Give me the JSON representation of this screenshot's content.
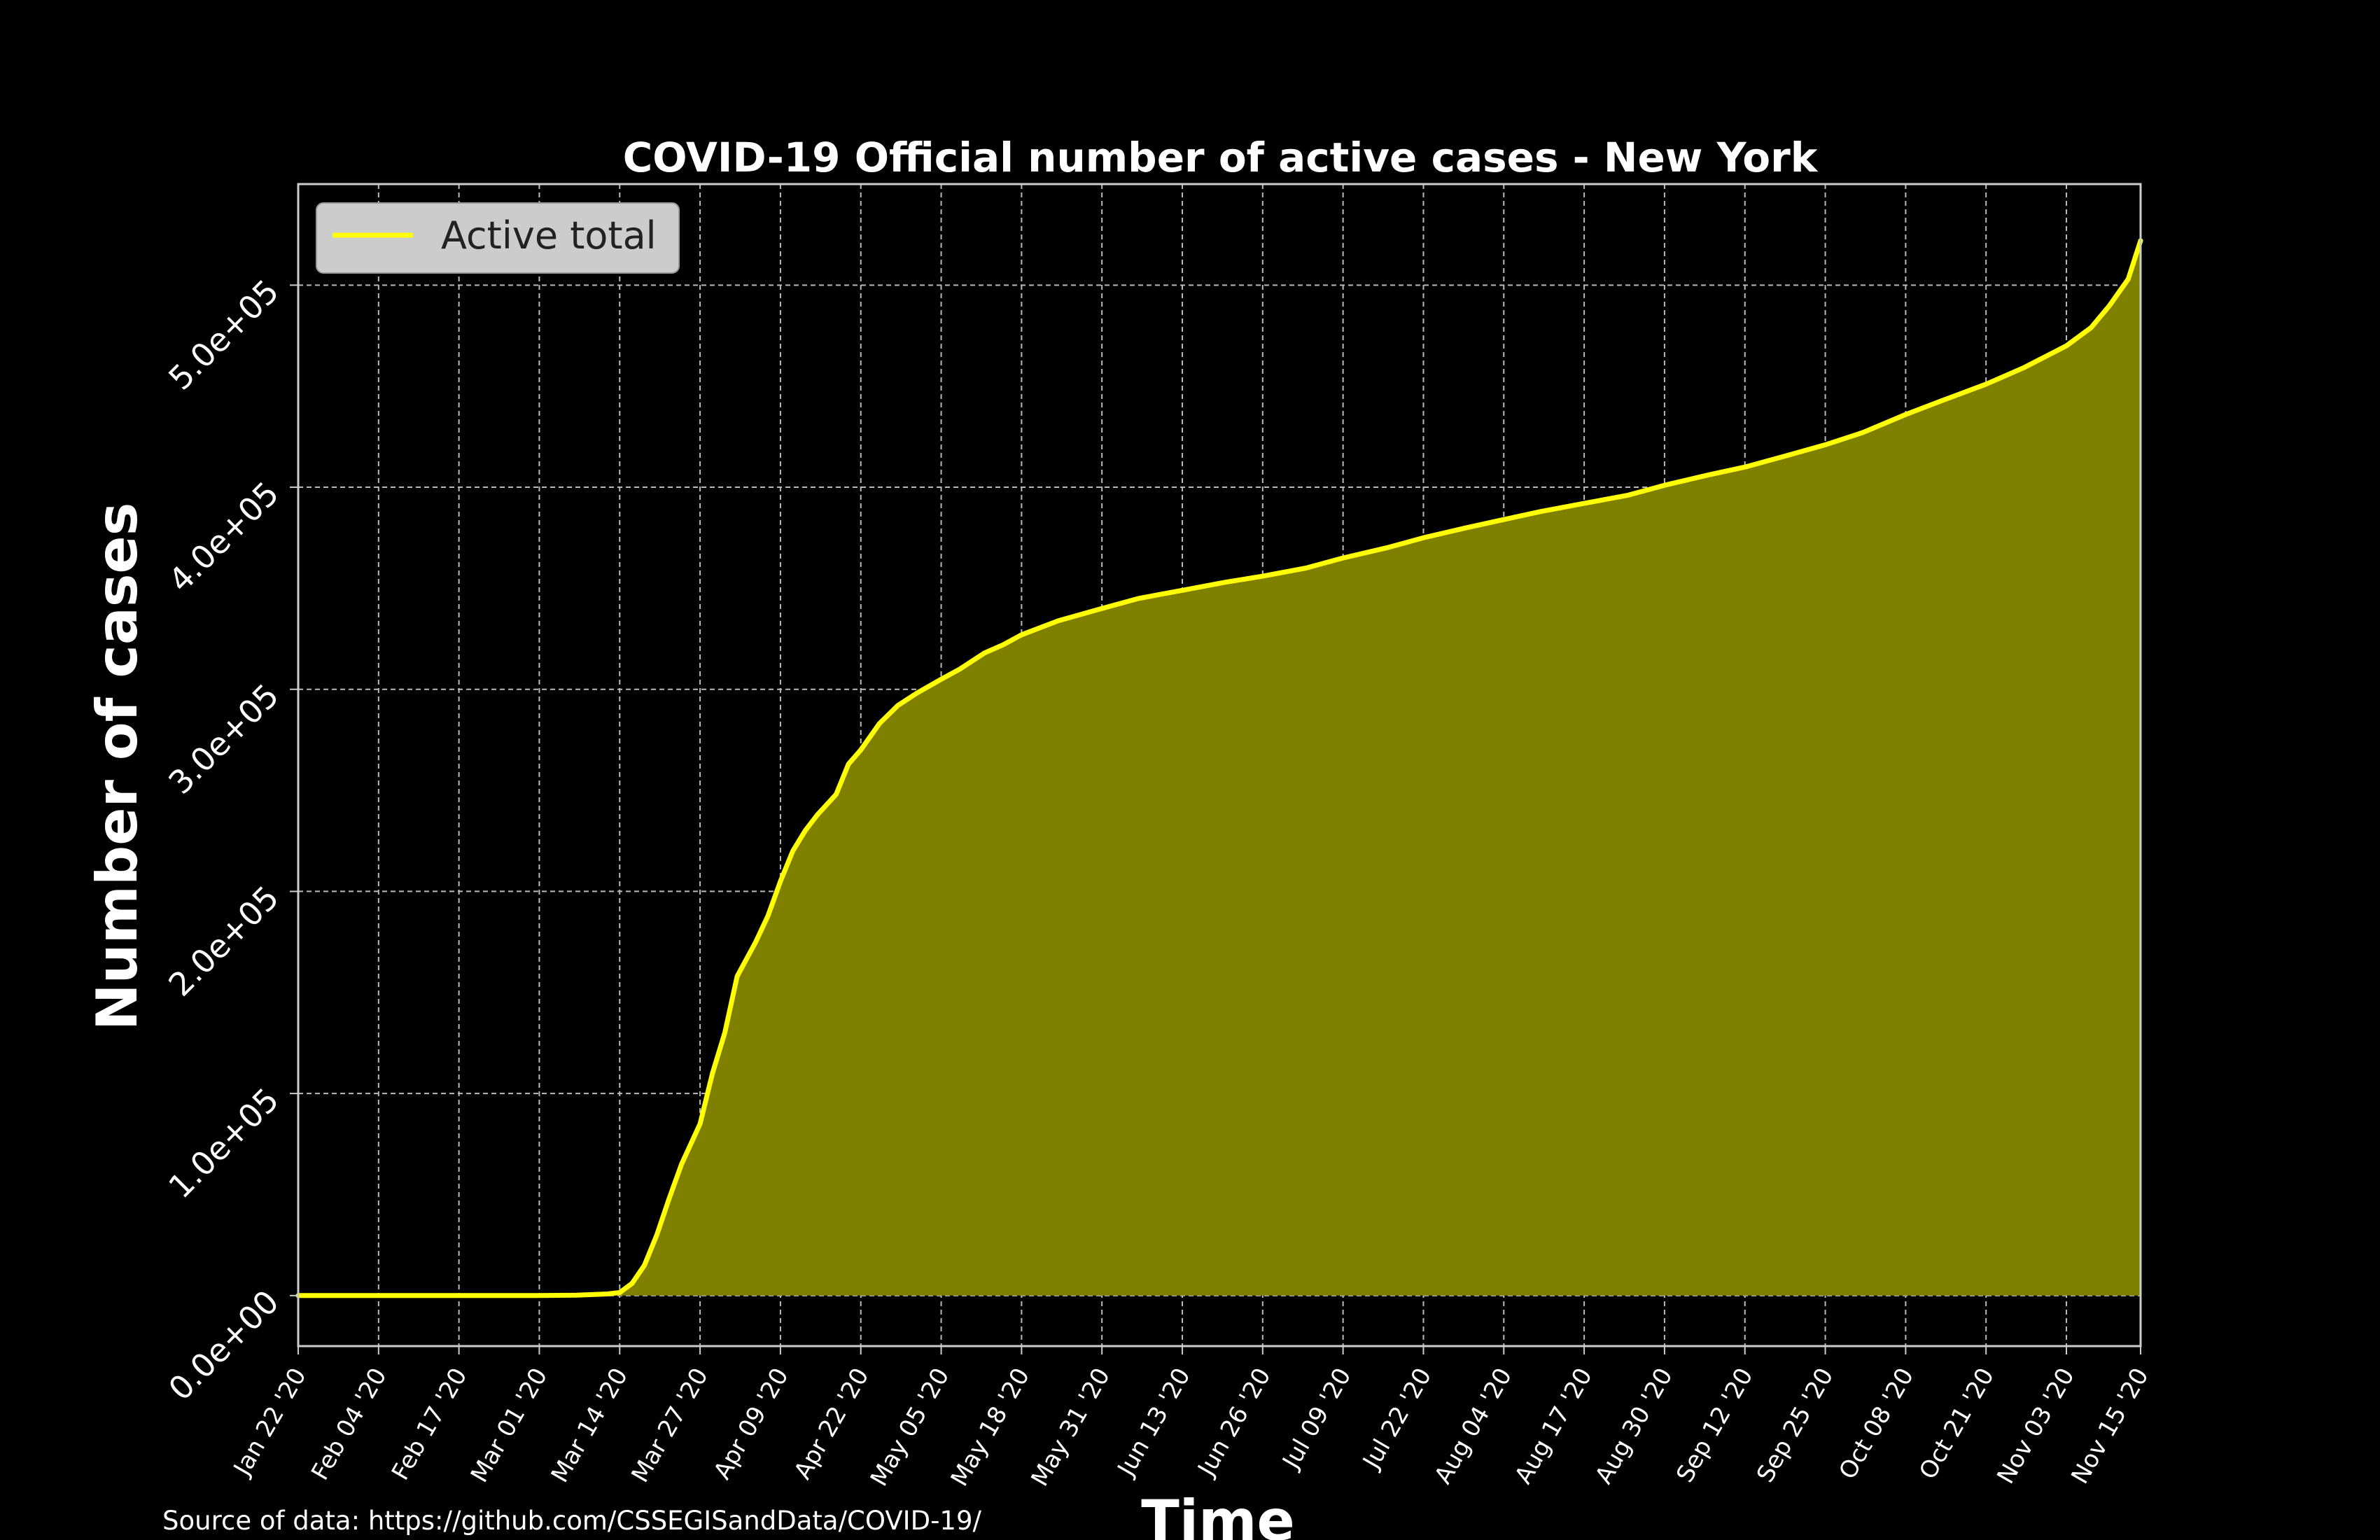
{
  "chart_data": {
    "type": "area",
    "title": "COVID-19 Official number of active cases - New York",
    "xlabel": "Time",
    "ylabel": "Number of cases",
    "source_note": "Source of data: https://github.com/CSSEGISandData/COVID-19/",
    "legend": {
      "placement": "top-left",
      "entries": [
        "Active total"
      ]
    },
    "grid": true,
    "ylim": [
      -25000,
      550000
    ],
    "yticks": [
      0,
      100000,
      200000,
      300000,
      400000,
      500000
    ],
    "ytick_labels": [
      "0.0e+00",
      "1.0e+05",
      "2.0e+05",
      "3.0e+05",
      "4.0e+05",
      "5.0e+05"
    ],
    "xlim": [
      "2020-01-22",
      "2020-11-15"
    ],
    "xticks": [
      "2020-01-22",
      "2020-02-04",
      "2020-02-17",
      "2020-03-01",
      "2020-03-14",
      "2020-03-27",
      "2020-04-09",
      "2020-04-22",
      "2020-05-05",
      "2020-05-18",
      "2020-05-31",
      "2020-06-13",
      "2020-06-26",
      "2020-07-09",
      "2020-07-22",
      "2020-08-04",
      "2020-08-17",
      "2020-08-30",
      "2020-09-12",
      "2020-09-25",
      "2020-10-08",
      "2020-10-21",
      "2020-11-03",
      "2020-11-15"
    ],
    "xtick_labels": [
      "Jan 22 '20",
      "Feb 04 '20",
      "Feb 17 '20",
      "Mar 01 '20",
      "Mar 14 '20",
      "Mar 27 '20",
      "Apr 09 '20",
      "Apr 22 '20",
      "May 05 '20",
      "May 18 '20",
      "May 31 '20",
      "Jun 13 '20",
      "Jun 26 '20",
      "Jul 09 '20",
      "Jul 22 '20",
      "Aug 04 '20",
      "Aug 17 '20",
      "Aug 30 '20",
      "Sep 12 '20",
      "Sep 25 '20",
      "Oct 08 '20",
      "Oct 21 '20",
      "Nov 03 '20",
      "Nov 15 '20"
    ],
    "series": [
      {
        "name": "Active total",
        "color": "#ffff00",
        "fill_color": "#808000",
        "x": [
          "2020-01-22",
          "2020-02-04",
          "2020-02-17",
          "2020-03-01",
          "2020-03-07",
          "2020-03-12",
          "2020-03-14",
          "2020-03-16",
          "2020-03-18",
          "2020-03-20",
          "2020-03-22",
          "2020-03-24",
          "2020-03-27",
          "2020-03-29",
          "2020-03-31",
          "2020-04-02",
          "2020-04-05",
          "2020-04-07",
          "2020-04-09",
          "2020-04-11",
          "2020-04-13",
          "2020-04-15",
          "2020-04-18",
          "2020-04-20",
          "2020-04-22",
          "2020-04-25",
          "2020-04-28",
          "2020-05-01",
          "2020-05-05",
          "2020-05-08",
          "2020-05-12",
          "2020-05-15",
          "2020-05-18",
          "2020-05-24",
          "2020-05-31",
          "2020-06-06",
          "2020-06-13",
          "2020-06-20",
          "2020-06-26",
          "2020-07-03",
          "2020-07-09",
          "2020-07-16",
          "2020-07-22",
          "2020-07-29",
          "2020-08-04",
          "2020-08-10",
          "2020-08-17",
          "2020-08-24",
          "2020-08-30",
          "2020-09-06",
          "2020-09-12",
          "2020-09-18",
          "2020-09-25",
          "2020-10-01",
          "2020-10-08",
          "2020-10-14",
          "2020-10-21",
          "2020-10-27",
          "2020-11-03",
          "2020-11-07",
          "2020-11-10",
          "2020-11-13",
          "2020-11-15"
        ],
        "values": [
          0,
          0,
          0,
          0,
          200,
          800,
          1500,
          6000,
          15000,
          30000,
          48000,
          65000,
          85000,
          110000,
          130000,
          158000,
          175000,
          188000,
          205000,
          220000,
          230000,
          238000,
          248000,
          263000,
          270000,
          283000,
          292000,
          298000,
          305000,
          310000,
          318000,
          322000,
          327000,
          334000,
          340000,
          345000,
          349000,
          353000,
          356000,
          360000,
          365000,
          370000,
          375000,
          380000,
          384000,
          388000,
          392000,
          396000,
          401000,
          406000,
          410000,
          415000,
          421000,
          427000,
          436000,
          443000,
          451000,
          459000,
          470000,
          479000,
          490000,
          503000,
          522000
        ]
      }
    ]
  }
}
